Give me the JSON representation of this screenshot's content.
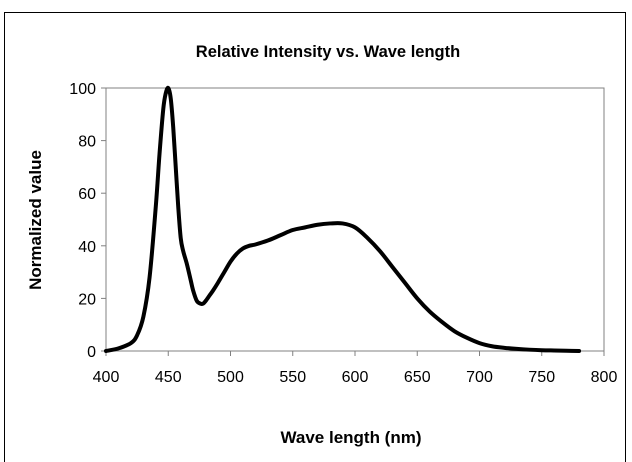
{
  "chart_data": {
    "type": "line",
    "title": "Relative Intensity vs. Wave length",
    "xlabel": "Wave length (nm)",
    "ylabel": "Normalized value",
    "xlim": [
      400,
      800
    ],
    "ylim": [
      0,
      100
    ],
    "xticks": [
      "400",
      "450",
      "500",
      "550",
      "600",
      "650",
      "700",
      "750",
      "800"
    ],
    "yticks": [
      "0",
      "20",
      "40",
      "60",
      "80",
      "100"
    ],
    "grid": false,
    "legend": "none",
    "line_color": "#000000",
    "series": [
      {
        "x": [
          400,
          410,
          420,
          425,
          430,
          435,
          440,
          443,
          446,
          448,
          450,
          452,
          454,
          456,
          458,
          460,
          462,
          465,
          468,
          470,
          473,
          476,
          478,
          480,
          483,
          486,
          490,
          495,
          500,
          505,
          510,
          515,
          520,
          530,
          540,
          550,
          560,
          570,
          580,
          590,
          600,
          610,
          620,
          630,
          640,
          650,
          660,
          670,
          680,
          690,
          700,
          710,
          720,
          730,
          740,
          750,
          760,
          770,
          780
        ],
        "y": [
          0,
          1,
          3,
          6,
          13,
          28,
          55,
          75,
          92,
          98,
          100,
          96,
          85,
          70,
          55,
          43,
          38,
          33,
          27,
          23,
          19,
          18,
          18,
          19,
          21,
          23,
          26,
          30,
          34,
          37,
          39,
          40,
          40.5,
          42,
          44,
          46,
          47,
          48,
          48.5,
          48.5,
          47,
          43,
          38,
          32,
          26,
          20,
          15,
          11,
          7.5,
          5,
          3,
          1.8,
          1.2,
          0.8,
          0.5,
          0.3,
          0.2,
          0.1,
          0
        ]
      }
    ]
  }
}
